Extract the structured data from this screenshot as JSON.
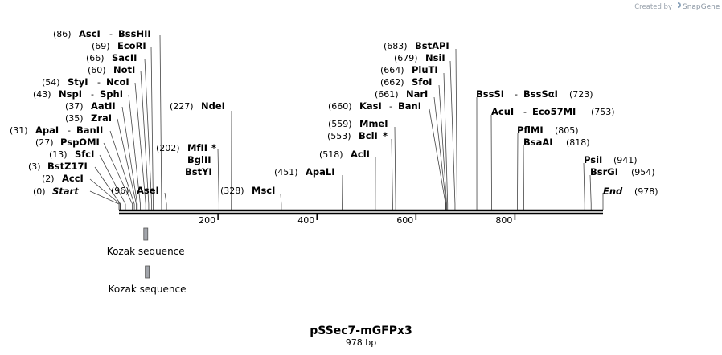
{
  "credit": {
    "prefix": "Created by",
    "brand": "SnapGene"
  },
  "map": {
    "length": 978,
    "title": "pSSec7-mGFPx3",
    "subtitle": "978 bp",
    "ticks": [
      {
        "value": 200,
        "label": "200"
      },
      {
        "value": 400,
        "label": "400"
      },
      {
        "value": 600,
        "label": "600"
      },
      {
        "value": 800,
        "label": "800"
      }
    ]
  },
  "features": [
    {
      "label": "Kozak sequence",
      "start": 50,
      "end": 58,
      "color": "#a2a5ab"
    },
    {
      "label": "Kozak sequence",
      "start": 53,
      "end": 61,
      "color": "#a2a5ab"
    }
  ],
  "sites": [
    {
      "pos": 0,
      "pos_label": "(0)",
      "name": "Start",
      "kind": "term"
    },
    {
      "pos": 2,
      "pos_label": "(2)",
      "name": "AccI"
    },
    {
      "pos": 3,
      "pos_label": "(3)",
      "name": "BstZ17I"
    },
    {
      "pos": 13,
      "pos_label": "(13)",
      "name": "SfcI"
    },
    {
      "pos": 27,
      "pos_label": "(27)",
      "name": "PspOMI"
    },
    {
      "pos": 31,
      "pos_label": "(31)",
      "name": "ApaI",
      "name2": "BanII"
    },
    {
      "pos": 35,
      "pos_label": "(35)",
      "name": "ZraI"
    },
    {
      "pos": 37,
      "pos_label": "(37)",
      "name": "AatII"
    },
    {
      "pos": 43,
      "pos_label": "(43)",
      "name": "NspI",
      "name2": "SphI"
    },
    {
      "pos": 54,
      "pos_label": "(54)",
      "name": "StyI",
      "name2": "NcoI"
    },
    {
      "pos": 60,
      "pos_label": "(60)",
      "name": "NotI"
    },
    {
      "pos": 66,
      "pos_label": "(66)",
      "name": "SacII"
    },
    {
      "pos": 69,
      "pos_label": "(69)",
      "name": "EcoRI"
    },
    {
      "pos": 86,
      "pos_label": "(86)",
      "name": "AscI",
      "name2": "BssHII"
    },
    {
      "pos": 96,
      "pos_label": "(96)",
      "name": "AseI"
    },
    {
      "pos": 202,
      "pos_label": "(202)",
      "name": "MfII",
      "star": "*",
      "extra": [
        "BglII",
        "BstYI"
      ]
    },
    {
      "pos": 227,
      "pos_label": "(227)",
      "name": "NdeI"
    },
    {
      "pos": 328,
      "pos_label": "(328)",
      "name": "MscI"
    },
    {
      "pos": 451,
      "pos_label": "(451)",
      "name": "ApaLI"
    },
    {
      "pos": 518,
      "pos_label": "(518)",
      "name": "AclI"
    },
    {
      "pos": 553,
      "pos_label": "(553)",
      "name": "BclI",
      "star": "*"
    },
    {
      "pos": 559,
      "pos_label": "(559)",
      "name": "MmeI"
    },
    {
      "pos": 660,
      "pos_label": "(660)",
      "name": "KasI",
      "name2": "BanI"
    },
    {
      "pos": 661,
      "pos_label": "(661)",
      "name": "NarI"
    },
    {
      "pos": 662,
      "pos_label": "(662)",
      "name": "SfoI"
    },
    {
      "pos": 664,
      "pos_label": "(664)",
      "name": "PluTI"
    },
    {
      "pos": 679,
      "pos_label": "(679)",
      "name": "NsiI"
    },
    {
      "pos": 683,
      "pos_label": "(683)",
      "name": "BstAPI"
    },
    {
      "pos": 723,
      "pos_label": "(723)",
      "name": "BssSI",
      "name2": "BssSαI"
    },
    {
      "pos": 753,
      "pos_label": "(753)",
      "name": "AcuI",
      "name2": "Eco57MI"
    },
    {
      "pos": 805,
      "pos_label": "(805)",
      "name": "PflMI"
    },
    {
      "pos": 818,
      "pos_label": "(818)",
      "name": "BsaAI"
    },
    {
      "pos": 941,
      "pos_label": "(941)",
      "name": "PsiI"
    },
    {
      "pos": 954,
      "pos_label": "(954)",
      "name": "BsrGI"
    },
    {
      "pos": 978,
      "pos_label": "(978)",
      "name": "End",
      "kind": "term"
    }
  ]
}
